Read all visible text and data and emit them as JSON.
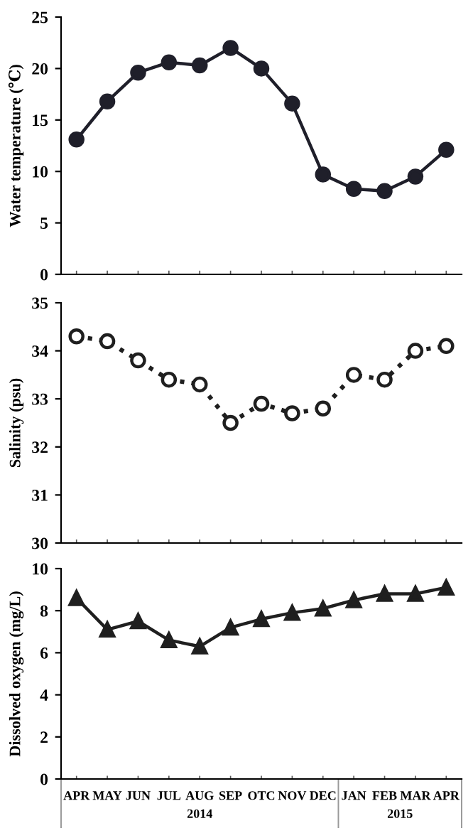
{
  "chart_data": [
    {
      "type": "line",
      "ylabel": "Water temperature (℃)",
      "series": [
        {
          "color": "#1f1f2a",
          "values": [
            13.1,
            16.8,
            19.6,
            20.6,
            20.3,
            22.0,
            20.0,
            16.6,
            9.7,
            8.3,
            8.1,
            9.5,
            12.1
          ]
        }
      ],
      "ylim": [
        0,
        25
      ],
      "yticks": [
        0,
        5,
        10,
        15,
        20,
        25
      ],
      "marker": "circle",
      "line_style": "solid",
      "tick_labels": "y"
    },
    {
      "type": "line",
      "ylabel": "Salinity (psu)",
      "series": [
        {
          "color": "#1f1f1f",
          "values": [
            34.3,
            34.2,
            33.8,
            33.4,
            33.3,
            32.5,
            32.9,
            32.7,
            32.8,
            33.5,
            33.4,
            34.0,
            34.1
          ]
        }
      ],
      "ylim": [
        30,
        35
      ],
      "yticks": [
        30,
        31,
        32,
        33,
        34,
        35
      ],
      "marker": "open circle",
      "line_style": "dotted",
      "tick_labels": "y"
    },
    {
      "type": "line",
      "ylabel": "Dissolved oxygen (mg/L)",
      "categories": [
        "APR",
        "MAY",
        "JUN",
        "JUL",
        "AUG",
        "SEP",
        "OTC",
        "NOV",
        "DEC",
        "JAN",
        "FEB",
        "MAR",
        "APR"
      ],
      "series": [
        {
          "color": "#1f1f1f",
          "values": [
            8.6,
            7.1,
            7.5,
            6.6,
            6.3,
            7.2,
            7.6,
            7.9,
            8.1,
            8.5,
            8.8,
            8.8,
            9.1
          ]
        }
      ],
      "ylim": [
        0,
        10
      ],
      "yticks": [
        0,
        2,
        4,
        6,
        8,
        10
      ],
      "marker": "triangle",
      "line_style": "solid",
      "annotations": [
        "2014",
        "2015"
      ]
    }
  ]
}
